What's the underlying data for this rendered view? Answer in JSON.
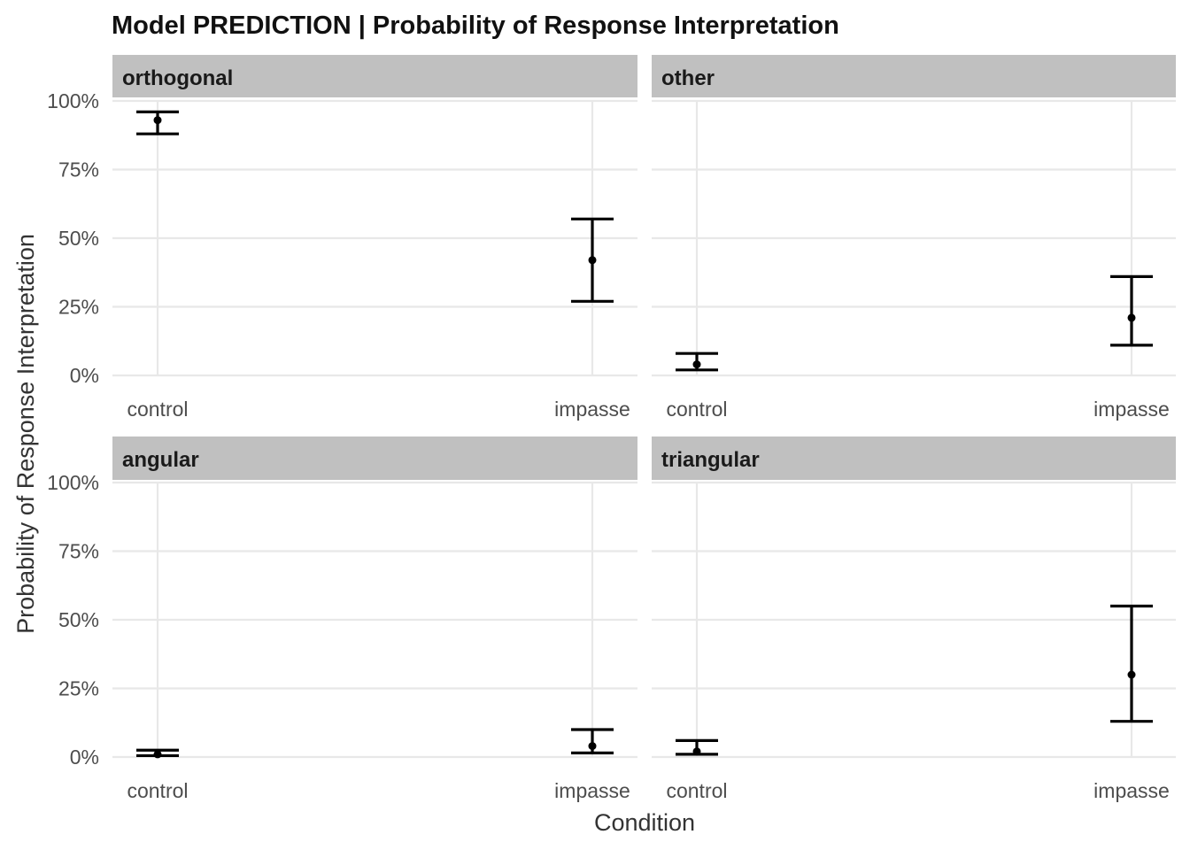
{
  "chart_data": {
    "type": "errorbar",
    "title": "Model PREDICTION | Probability of Response Interpretation",
    "xlabel": "Condition",
    "ylabel": "Probability of Response Interpretation",
    "categories": [
      "control",
      "impasse"
    ],
    "ylim": [
      0,
      1
    ],
    "yticks": [
      "0%",
      "25%",
      "50%",
      "75%",
      "100%"
    ],
    "grid": true,
    "colors": {
      "strip": "#c0c0c0",
      "grid": "#e8e8e8",
      "mark": "#000000"
    },
    "panels": [
      {
        "name": "orthogonal",
        "points": [
          {
            "x": "control",
            "y": 0.93,
            "lower": 0.88,
            "upper": 0.96
          },
          {
            "x": "impasse",
            "y": 0.42,
            "lower": 0.27,
            "upper": 0.57
          }
        ]
      },
      {
        "name": "other",
        "points": [
          {
            "x": "control",
            "y": 0.04,
            "lower": 0.02,
            "upper": 0.08
          },
          {
            "x": "impasse",
            "y": 0.21,
            "lower": 0.11,
            "upper": 0.36
          }
        ]
      },
      {
        "name": "angular",
        "points": [
          {
            "x": "control",
            "y": 0.01,
            "lower": 0.005,
            "upper": 0.025
          },
          {
            "x": "impasse",
            "y": 0.04,
            "lower": 0.015,
            "upper": 0.1
          }
        ]
      },
      {
        "name": "triangular",
        "points": [
          {
            "x": "control",
            "y": 0.02,
            "lower": 0.01,
            "upper": 0.06
          },
          {
            "x": "impasse",
            "y": 0.3,
            "lower": 0.13,
            "upper": 0.55
          }
        ]
      }
    ]
  }
}
